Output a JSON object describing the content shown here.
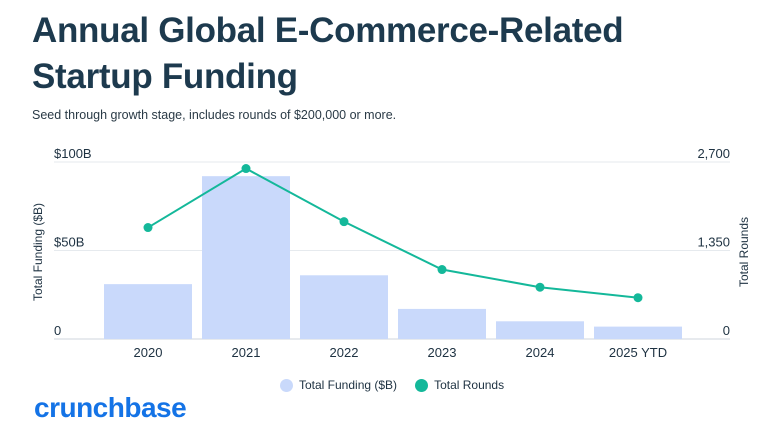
{
  "title": "Annual Global E-Commerce-Related Startup Funding",
  "subtitle": "Seed through growth stage, includes rounds of $200,000 or more.",
  "logo_text": "crunchbase",
  "colors": {
    "bar": "#c9d9fb",
    "line": "#14b89a",
    "logo": "#1473e6",
    "title": "#1d3a4e"
  },
  "legend": {
    "funding_label": "Total Funding ($B)",
    "rounds_label": "Total Rounds"
  },
  "chart_data": {
    "type": "bar",
    "categories": [
      "2020",
      "2021",
      "2022",
      "2023",
      "2024",
      "2025 YTD"
    ],
    "series": [
      {
        "name": "Total Funding ($B)",
        "type": "bar",
        "axis": "left",
        "values": [
          31,
          92,
          36,
          17,
          10,
          7
        ]
      },
      {
        "name": "Total Rounds",
        "type": "line",
        "axis": "right",
        "values": [
          1700,
          2600,
          1790,
          1060,
          790,
          630
        ]
      }
    ],
    "ylabel": "Total Funding ($B)",
    "y2label": "Total Rounds",
    "ylim": [
      0,
      100
    ],
    "y2lim": [
      0,
      2700
    ],
    "yticks": [
      {
        "value": 0,
        "label": "0"
      },
      {
        "value": 50,
        "label": "$50B"
      },
      {
        "value": 100,
        "label": "$100B"
      }
    ],
    "y2ticks": [
      {
        "value": 0,
        "label": "0"
      },
      {
        "value": 1350,
        "label": "1,350"
      },
      {
        "value": 2700,
        "label": "2,700"
      }
    ],
    "grid": true,
    "legend_position": "bottom-center"
  }
}
